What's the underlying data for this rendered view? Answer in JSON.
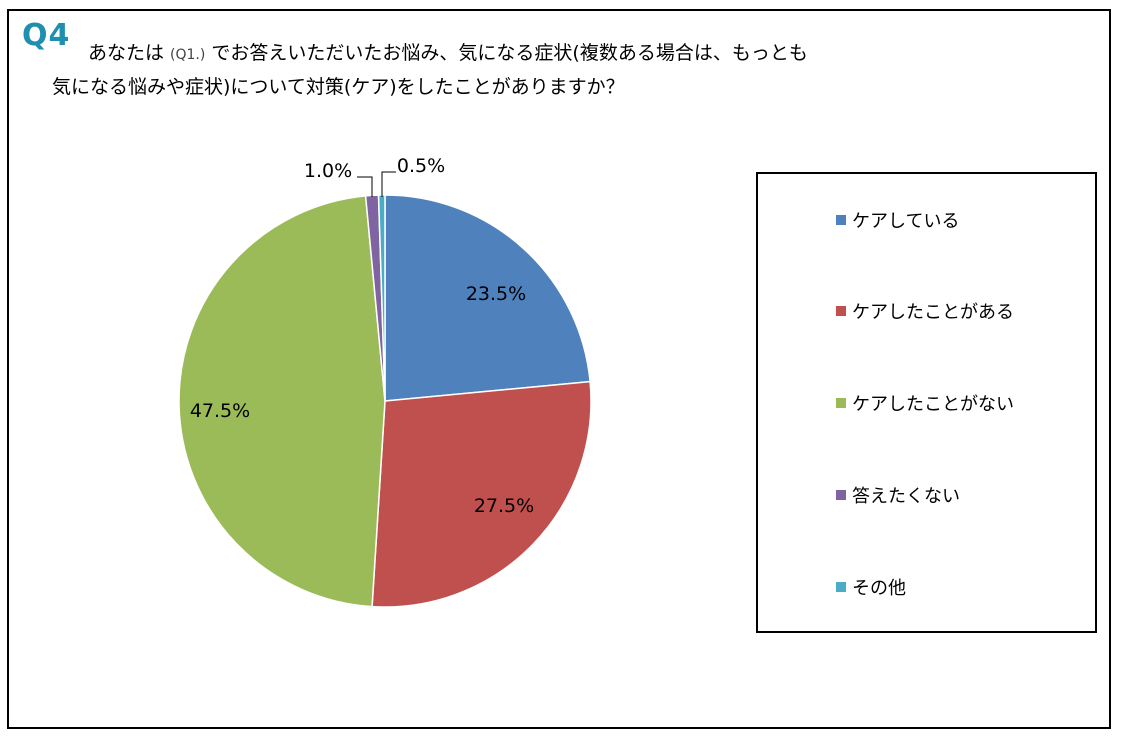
{
  "question": {
    "number": "Q4",
    "line1_prefix": "あなたは ",
    "line1_ref": "(Q1.)",
    "line1_suffix": " でお答えいただいたお悩み、気になる症状(複数ある場合は、もっとも",
    "line2": "気になる悩みや症状)について対策(ケア)をしたことがありますか？"
  },
  "chart_data": {
    "type": "pie",
    "title": "",
    "start_angle_deg": 0,
    "direction": "clockwise",
    "legend_position": "right",
    "slices": [
      {
        "label": "ケアしている",
        "value": 23.5,
        "display": "23.5%",
        "color": "#4f81bd"
      },
      {
        "label": "ケアしたことがある",
        "value": 27.5,
        "display": "27.5%",
        "color": "#c0504d"
      },
      {
        "label": "ケアしたことがない",
        "value": 47.5,
        "display": "47.5%",
        "color": "#9bbb59"
      },
      {
        "label": "答えたくない",
        "value": 1.0,
        "display": "1.0%",
        "color": "#8064a2"
      },
      {
        "label": "その他",
        "value": 0.5,
        "display": "0.5%",
        "color": "#4bacc6"
      }
    ]
  }
}
